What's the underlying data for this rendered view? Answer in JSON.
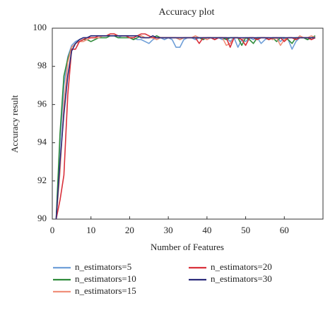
{
  "chart_data": {
    "type": "line",
    "title": "Accuracy plot",
    "x_label": "Number of Features",
    "y_label": "Accuracy result",
    "x": [
      1,
      2,
      3,
      4,
      5,
      6,
      7,
      8,
      9,
      10,
      11,
      12,
      13,
      14,
      15,
      16,
      17,
      18,
      19,
      20,
      21,
      22,
      23,
      24,
      25,
      26,
      27,
      28,
      29,
      30,
      31,
      32,
      33,
      34,
      35,
      36,
      37,
      38,
      39,
      40,
      41,
      42,
      43,
      44,
      45,
      46,
      47,
      48,
      49,
      50,
      51,
      52,
      53,
      54,
      55,
      56,
      57,
      58,
      59,
      60,
      61,
      62,
      63,
      64,
      65,
      66,
      67,
      68
    ],
    "xlim": [
      0,
      70
    ],
    "xticks": [
      0,
      10,
      20,
      30,
      40,
      50,
      60
    ],
    "ylim": [
      90,
      100
    ],
    "yticks": [
      90,
      92,
      94,
      96,
      98,
      100
    ],
    "grid": false,
    "legend": "bottom",
    "series": [
      {
        "name": "n_estimators=5",
        "color": "#6f9fd8",
        "values": [
          90,
          94,
          97,
          98.5,
          99.1,
          99.3,
          99.4,
          99.5,
          99.5,
          99.6,
          99.6,
          99.6,
          99.6,
          99.6,
          99.6,
          99.6,
          99.5,
          99.6,
          99.6,
          99.5,
          99.5,
          99.4,
          99.4,
          99.3,
          99.2,
          99.4,
          99.5,
          99.5,
          99.4,
          99.5,
          99.4,
          99.0,
          99.0,
          99.4,
          99.5,
          99.5,
          99.4,
          99.5,
          99.4,
          99.5,
          99.5,
          99.4,
          99.5,
          99.4,
          99.5,
          99.3,
          99.5,
          99.0,
          99.4,
          99.3,
          99.5,
          99.4,
          99.5,
          99.2,
          99.4,
          99.5,
          99.4,
          99.5,
          99.3,
          99.5,
          99.4,
          98.9,
          99.3,
          99.5,
          99.5,
          99.4,
          99.5,
          99.5
        ]
      },
      {
        "name": "n_estimators=10",
        "color": "#2e8b3a",
        "values": [
          90,
          94.5,
          97.5,
          98.4,
          99.0,
          99.2,
          99.3,
          99.4,
          99.4,
          99.3,
          99.4,
          99.5,
          99.5,
          99.5,
          99.6,
          99.6,
          99.5,
          99.5,
          99.5,
          99.5,
          99.4,
          99.5,
          99.6,
          99.5,
          99.5,
          99.5,
          99.6,
          99.5,
          99.5,
          99.5,
          99.5,
          99.5,
          99.4,
          99.5,
          99.5,
          99.5,
          99.5,
          99.5,
          99.4,
          99.5,
          99.5,
          99.5,
          99.5,
          99.5,
          99.4,
          99.5,
          99.5,
          99.5,
          99.1,
          99.5,
          99.4,
          99.2,
          99.5,
          99.5,
          99.5,
          99.4,
          99.5,
          99.3,
          99.5,
          99.5,
          99.4,
          99.2,
          99.5,
          99.5,
          99.5,
          99.4,
          99.5,
          99.6
        ]
      },
      {
        "name": "n_estimators=15",
        "color": "#f0907a",
        "values": [
          90,
          92.5,
          96,
          98.2,
          99.0,
          99.2,
          99.3,
          99.3,
          99.4,
          99.5,
          99.5,
          99.5,
          99.6,
          99.6,
          99.7,
          99.7,
          99.6,
          99.6,
          99.6,
          99.5,
          99.5,
          99.6,
          99.6,
          99.5,
          99.5,
          99.5,
          99.4,
          99.5,
          99.5,
          99.5,
          99.5,
          99.5,
          99.4,
          99.5,
          99.5,
          99.5,
          99.6,
          99.5,
          99.5,
          99.4,
          99.5,
          99.5,
          99.5,
          99.5,
          99.1,
          99.2,
          99.5,
          99.5,
          99.4,
          99.5,
          99.5,
          99.5,
          99.4,
          99.5,
          99.5,
          99.5,
          99.4,
          99.5,
          99.1,
          99.4,
          99.5,
          99.5,
          99.4,
          99.6,
          99.5,
          99.5,
          99.6,
          99.5
        ]
      },
      {
        "name": "n_estimators=20",
        "color": "#d9303a",
        "values": [
          90,
          91,
          92.3,
          96.5,
          98.9,
          98.9,
          99.3,
          99.4,
          99.5,
          99.5,
          99.5,
          99.6,
          99.6,
          99.6,
          99.7,
          99.7,
          99.6,
          99.6,
          99.6,
          99.5,
          99.5,
          99.6,
          99.7,
          99.7,
          99.6,
          99.5,
          99.5,
          99.5,
          99.5,
          99.5,
          99.5,
          99.5,
          99.5,
          99.5,
          99.5,
          99.5,
          99.5,
          99.2,
          99.5,
          99.5,
          99.5,
          99.4,
          99.5,
          99.5,
          99.5,
          99.0,
          99.5,
          99.5,
          99.4,
          99.1,
          99.5,
          99.5,
          99.4,
          99.5,
          99.5,
          99.4,
          99.5,
          99.5,
          99.5,
          99.3,
          99.5,
          99.5,
          99.4,
          99.5,
          99.5,
          99.5,
          99.4,
          99.5
        ]
      },
      {
        "name": "n_estimators=30",
        "color": "#2a2a7a",
        "values": [
          90,
          93,
          95.5,
          97.5,
          98.8,
          99.2,
          99.4,
          99.5,
          99.5,
          99.6,
          99.6,
          99.6,
          99.6,
          99.6,
          99.6,
          99.6,
          99.6,
          99.6,
          99.6,
          99.6,
          99.6,
          99.6,
          99.5,
          99.5,
          99.5,
          99.6,
          99.5,
          99.5,
          99.5,
          99.5,
          99.5,
          99.5,
          99.5,
          99.5,
          99.5,
          99.5,
          99.5,
          99.5,
          99.5,
          99.5,
          99.5,
          99.5,
          99.5,
          99.5,
          99.5,
          99.5,
          99.5,
          99.5,
          99.5,
          99.5,
          99.5,
          99.5,
          99.5,
          99.5,
          99.5,
          99.5,
          99.5,
          99.5,
          99.5,
          99.5,
          99.5,
          99.5,
          99.5,
          99.5,
          99.5,
          99.5,
          99.5,
          99.5
        ]
      }
    ]
  }
}
